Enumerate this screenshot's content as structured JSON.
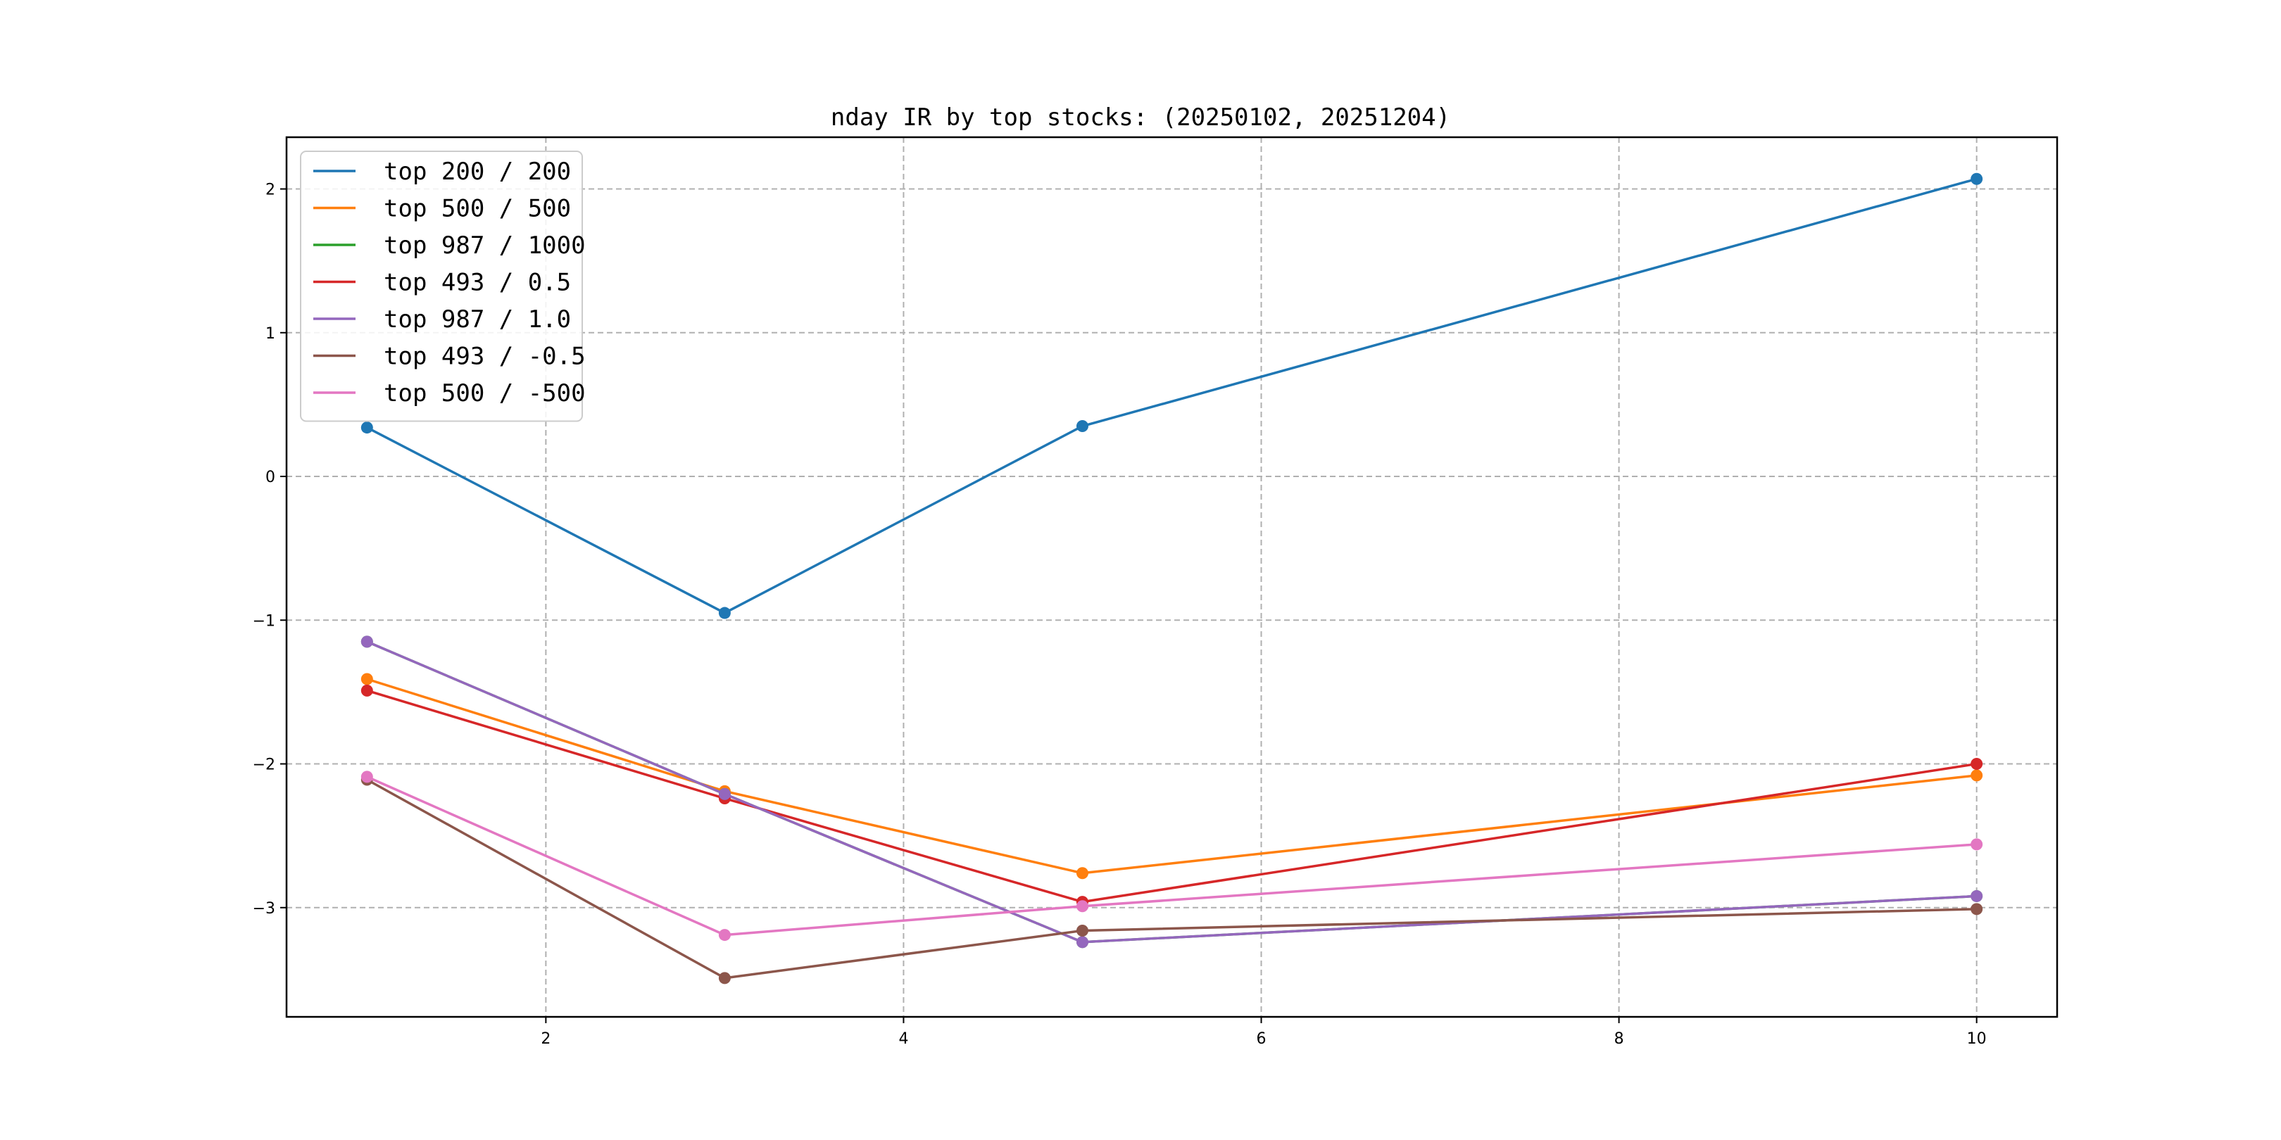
{
  "chart_data": {
    "type": "line",
    "title": "nday IR by top stocks: (20250102, 20251204)",
    "xlabel": "",
    "ylabel": "",
    "x": [
      1,
      3,
      5,
      10
    ],
    "xlim": [
      0.55,
      10.45
    ],
    "ylim": [
      -3.76,
      2.36
    ],
    "x_ticks": [
      2,
      4,
      6,
      8,
      10
    ],
    "y_ticks": [
      -3,
      -2,
      -1,
      0,
      1,
      2
    ],
    "x_tick_labels": [
      "2",
      "4",
      "6",
      "8",
      "10"
    ],
    "y_tick_labels": [
      "−3",
      "−2",
      "−1",
      "0",
      "1",
      "2"
    ],
    "grid": true,
    "legend_position": "top-left",
    "markers": "circle",
    "series": [
      {
        "name": "top 200 / 200",
        "color": "#1f77b4",
        "values": [
          0.34,
          -0.95,
          0.35,
          2.07
        ]
      },
      {
        "name": "top 500 / 500",
        "color": "#ff7f0e",
        "values": [
          -1.41,
          -2.19,
          -2.76,
          -2.08
        ]
      },
      {
        "name": "top 987 / 1000",
        "color": "#2ca02c",
        "values": [
          -1.15,
          -2.21,
          -3.24,
          -2.92
        ]
      },
      {
        "name": "top 493 / 0.5",
        "color": "#d62728",
        "values": [
          -1.49,
          -2.24,
          -2.96,
          -2.0
        ]
      },
      {
        "name": "top 987 / 1.0",
        "color": "#9467bd",
        "values": [
          -1.15,
          -2.21,
          -3.24,
          -2.92
        ]
      },
      {
        "name": "top 493 / -0.5",
        "color": "#8c564b",
        "values": [
          -2.11,
          -3.49,
          -3.16,
          -3.01
        ]
      },
      {
        "name": "top 500 / -500",
        "color": "#e377c2",
        "values": [
          -2.09,
          -3.19,
          -2.99,
          -2.56
        ]
      }
    ]
  }
}
